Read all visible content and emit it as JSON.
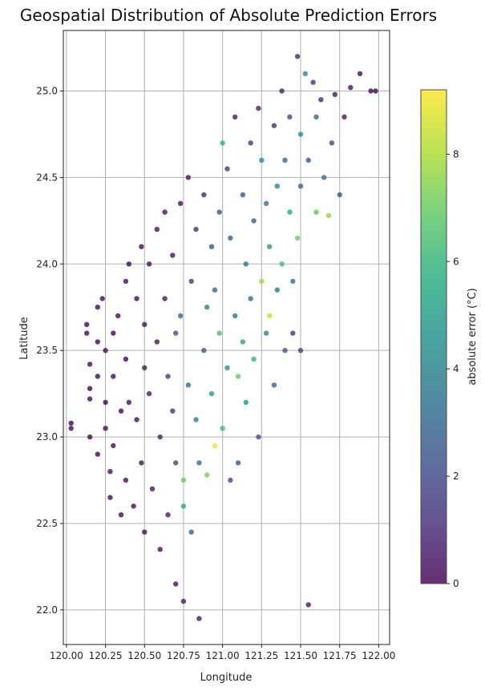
{
  "chart_data": {
    "type": "scatter",
    "title": "Geospatial Distribution of Absolute Prediction Errors",
    "xlabel": "Longitude",
    "ylabel": "Latitude",
    "xlim": [
      119.98,
      122.07
    ],
    "ylim": [
      21.8,
      25.35
    ],
    "xticks": [
      "120.00",
      "120.25",
      "120.50",
      "120.75",
      "121.00",
      "121.25",
      "121.50",
      "121.75",
      "122.00"
    ],
    "yticks": [
      "22.0",
      "22.5",
      "23.0",
      "23.5",
      "24.0",
      "24.5",
      "25.0"
    ],
    "grid": true,
    "colormap": "viridis",
    "colorbar": {
      "label": "absolute error (°C)",
      "range": [
        0,
        9.2
      ],
      "ticks": [
        "0",
        "2",
        "4",
        "6",
        "8"
      ]
    },
    "marker_alpha": 0.8,
    "note_points": "approximate representative sample of the dense station grid",
    "points": [
      [
        120.03,
        23.08,
        0.1
      ],
      [
        120.03,
        23.05,
        0.1
      ],
      [
        120.13,
        23.65,
        0.2
      ],
      [
        120.13,
        23.6,
        0.1
      ],
      [
        120.15,
        23.42,
        0.2
      ],
      [
        120.15,
        23.28,
        0.1
      ],
      [
        120.15,
        23.22,
        0.2
      ],
      [
        120.15,
        23.0,
        0.1
      ],
      [
        120.2,
        23.75,
        0.2
      ],
      [
        120.2,
        23.55,
        0.1
      ],
      [
        120.2,
        23.35,
        0.2
      ],
      [
        120.2,
        22.9,
        0.1
      ],
      [
        120.23,
        23.8,
        0.3
      ],
      [
        120.25,
        23.5,
        0.2
      ],
      [
        120.25,
        23.2,
        0.1
      ],
      [
        120.25,
        23.05,
        0.2
      ],
      [
        120.28,
        22.8,
        0.3
      ],
      [
        120.28,
        22.65,
        0.2
      ],
      [
        120.3,
        23.6,
        0.1
      ],
      [
        120.3,
        23.35,
        0.2
      ],
      [
        120.3,
        22.95,
        0.2
      ],
      [
        120.33,
        23.7,
        0.3
      ],
      [
        120.35,
        23.15,
        0.2
      ],
      [
        120.35,
        22.55,
        0.2
      ],
      [
        120.38,
        23.9,
        0.2
      ],
      [
        120.38,
        23.45,
        0.1
      ],
      [
        120.38,
        22.75,
        0.3
      ],
      [
        120.4,
        24.0,
        0.2
      ],
      [
        120.4,
        23.2,
        0.3
      ],
      [
        120.43,
        22.6,
        0.2
      ],
      [
        120.45,
        23.8,
        0.3
      ],
      [
        120.45,
        23.1,
        0.4
      ],
      [
        120.48,
        24.1,
        0.2
      ],
      [
        120.48,
        22.85,
        0.3
      ],
      [
        120.5,
        23.65,
        0.3
      ],
      [
        120.5,
        23.4,
        0.5
      ],
      [
        120.5,
        22.45,
        0.2
      ],
      [
        120.53,
        24.0,
        0.3
      ],
      [
        120.53,
        23.25,
        0.6
      ],
      [
        120.55,
        22.7,
        0.4
      ],
      [
        120.58,
        24.2,
        0.3
      ],
      [
        120.58,
        23.55,
        0.5
      ],
      [
        120.6,
        23.0,
        0.8
      ],
      [
        120.6,
        22.35,
        0.3
      ],
      [
        120.63,
        24.3,
        0.3
      ],
      [
        120.63,
        23.8,
        0.5
      ],
      [
        120.65,
        23.35,
        1.5
      ],
      [
        120.65,
        22.55,
        0.7
      ],
      [
        120.68,
        24.05,
        0.4
      ],
      [
        120.68,
        23.15,
        1.2
      ],
      [
        120.7,
        23.6,
        2.2
      ],
      [
        120.7,
        22.85,
        1.8
      ],
      [
        120.7,
        22.15,
        0.5
      ],
      [
        120.73,
        24.35,
        0.4
      ],
      [
        120.73,
        23.7,
        3.1
      ],
      [
        120.75,
        22.75,
        7.0
      ],
      [
        120.75,
        22.6,
        5.5
      ],
      [
        120.75,
        22.05,
        0.6
      ],
      [
        120.78,
        24.5,
        0.4
      ],
      [
        120.78,
        23.3,
        3.5
      ],
      [
        120.8,
        23.9,
        1.5
      ],
      [
        120.8,
        22.45,
        2.8
      ],
      [
        120.83,
        24.2,
        1.2
      ],
      [
        120.83,
        23.1,
        4.0
      ],
      [
        120.85,
        22.85,
        3.2
      ],
      [
        120.85,
        21.95,
        0.7
      ],
      [
        120.88,
        24.4,
        1.0
      ],
      [
        120.88,
        23.5,
        2.5
      ],
      [
        120.9,
        22.78,
        7.2
      ],
      [
        120.9,
        23.75,
        4.0
      ],
      [
        120.93,
        24.1,
        2.5
      ],
      [
        120.93,
        23.25,
        5.0
      ],
      [
        120.95,
        22.95,
        9.0
      ],
      [
        120.95,
        23.85,
        3.0
      ],
      [
        120.98,
        24.3,
        2.2
      ],
      [
        120.98,
        23.6,
        6.5
      ],
      [
        121.0,
        24.7,
        5.8
      ],
      [
        121.0,
        23.05,
        6.2
      ],
      [
        121.03,
        24.55,
        1.5
      ],
      [
        121.03,
        23.4,
        4.5
      ],
      [
        121.05,
        24.15,
        2.8
      ],
      [
        121.05,
        22.75,
        2.0
      ],
      [
        121.08,
        24.85,
        0.6
      ],
      [
        121.08,
        23.7,
        3.6
      ],
      [
        121.1,
        23.35,
        7.0
      ],
      [
        121.1,
        22.85,
        2.5
      ],
      [
        121.13,
        24.4,
        2.5
      ],
      [
        121.13,
        23.55,
        5.2
      ],
      [
        121.15,
        24.0,
        3.5
      ],
      [
        121.15,
        23.2,
        4.8
      ],
      [
        121.18,
        24.7,
        1.5
      ],
      [
        121.18,
        23.8,
        3.2
      ],
      [
        121.2,
        24.25,
        2.8
      ],
      [
        121.2,
        23.45,
        6.0
      ],
      [
        121.23,
        24.9,
        0.8
      ],
      [
        121.23,
        23.0,
        2.2
      ],
      [
        121.25,
        23.9,
        7.8
      ],
      [
        121.25,
        24.6,
        4.5
      ],
      [
        121.28,
        24.35,
        3.6
      ],
      [
        121.28,
        23.6,
        4.2
      ],
      [
        121.3,
        24.1,
        5.0
      ],
      [
        121.3,
        23.7,
        8.4
      ],
      [
        121.33,
        24.8,
        1.2
      ],
      [
        121.33,
        23.3,
        3.0
      ],
      [
        121.35,
        24.45,
        4.0
      ],
      [
        121.35,
        23.85,
        3.8
      ],
      [
        121.38,
        24.0,
        6.2
      ],
      [
        121.38,
        25.0,
        0.8
      ],
      [
        121.4,
        24.6,
        3.0
      ],
      [
        121.4,
        23.5,
        2.5
      ],
      [
        121.43,
        24.3,
        5.5
      ],
      [
        121.43,
        24.85,
        2.0
      ],
      [
        121.45,
        23.9,
        3.4
      ],
      [
        121.45,
        23.6,
        1.5
      ],
      [
        121.48,
        24.15,
        7.0
      ],
      [
        121.48,
        25.2,
        0.9
      ],
      [
        121.5,
        24.75,
        4.6
      ],
      [
        121.5,
        24.45,
        3.0
      ],
      [
        121.5,
        23.5,
        1.8
      ],
      [
        121.53,
        25.1,
        4.2
      ],
      [
        121.55,
        24.6,
        2.5
      ],
      [
        121.55,
        22.03,
        0.6
      ],
      [
        121.58,
        25.05,
        1.4
      ],
      [
        121.6,
        24.3,
        6.8
      ],
      [
        121.6,
        24.85,
        3.0
      ],
      [
        121.63,
        24.95,
        1.0
      ],
      [
        121.65,
        24.5,
        3.3
      ],
      [
        121.68,
        24.28,
        7.5
      ],
      [
        121.7,
        24.7,
        2.0
      ],
      [
        121.72,
        24.98,
        0.5
      ],
      [
        121.75,
        24.4,
        2.5
      ],
      [
        121.78,
        24.85,
        0.6
      ],
      [
        121.82,
        25.02,
        0.4
      ],
      [
        121.88,
        25.1,
        0.3
      ],
      [
        121.95,
        25.0,
        0.2
      ],
      [
        121.98,
        25.0,
        0.1
      ]
    ]
  }
}
